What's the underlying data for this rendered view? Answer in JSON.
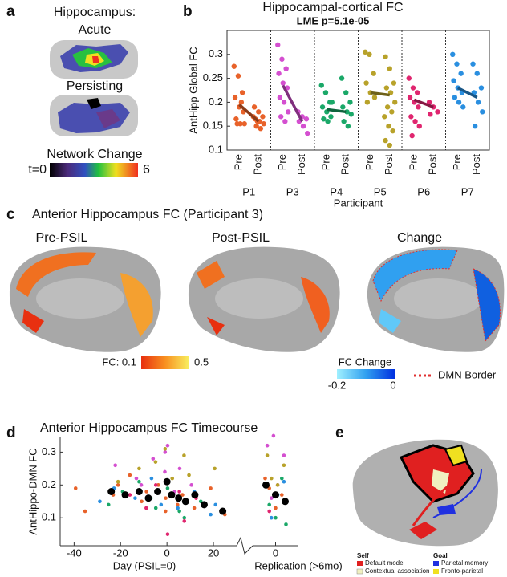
{
  "panels": {
    "a": "a",
    "b": "b",
    "c": "c",
    "d": "d",
    "e": "e"
  },
  "panel_a": {
    "title": "Hippocampus:",
    "acute": "Acute",
    "persisting": "Persisting",
    "colorbar_title": "Network Change",
    "colorbar_min": "t=0",
    "colorbar_max": "6"
  },
  "panel_c": {
    "title": "Anterior Hippocampus FC (Participant 3)",
    "pre": "Pre-PSIL",
    "post": "Post-PSIL",
    "change": "Change",
    "fc_min": "FC: 0.1",
    "fc_max": "0.5",
    "change_title": "FC Change",
    "change_min": "-0.2",
    "change_max": "0",
    "border": "DMN Border"
  },
  "panel_e": {
    "self": "Self",
    "default_mode": "Default mode",
    "contextual": "Contextual association",
    "goal": "Goal",
    "parietal": "Parietal memory",
    "fronto": "Fronto-parietal"
  },
  "chart_data": [
    {
      "type": "strip",
      "title": "Hippocampal-cortical FC",
      "subtitle": "LME p=5.1e-05",
      "ylabel": "AntHipp Global FC",
      "xlabel": "Participant",
      "categories": [
        "Pre",
        "Post"
      ],
      "ylim": [
        0.1,
        0.35
      ],
      "yticks": [
        0.1,
        0.15,
        0.2,
        0.25,
        0.3
      ],
      "series": [
        {
          "name": "P1",
          "color": "#e8622a",
          "values": [
            [
              0.275,
              0.255,
              0.22,
              0.21,
              0.19,
              0.18,
              0.165,
              0.155,
              0.155,
              0.155,
              0.2
            ],
            [
              0.19,
              0.18,
              0.17,
              0.165,
              0.16,
              0.155,
              0.15,
              0.145,
              0.17,
              0.16
            ]
          ],
          "means": [
            0.195,
            0.16
          ]
        },
        {
          "name": "P3",
          "color": "#d44fd0",
          "values": [
            [
              0.32,
              0.29,
              0.27,
              0.26,
              0.24,
              0.23,
              0.21,
              0.2,
              0.18,
              0.17,
              0.16
            ],
            [
              0.18,
              0.17,
              0.165,
              0.16,
              0.15,
              0.135
            ]
          ],
          "means": [
            0.235,
            0.16
          ]
        },
        {
          "name": "P4",
          "color": "#1aa868",
          "values": [
            [
              0.235,
              0.22,
              0.2,
              0.19,
              0.18,
              0.17,
              0.165,
              0.16,
              0.2
            ],
            [
              0.25,
              0.22,
              0.2,
              0.19,
              0.18,
              0.175,
              0.16,
              0.15
            ]
          ],
          "means": [
            0.185,
            0.18
          ]
        },
        {
          "name": "P5",
          "color": "#b8a22a",
          "values": [
            [
              0.305,
              0.3,
              0.26,
              0.24,
              0.22,
              0.21,
              0.2
            ],
            [
              0.295,
              0.27,
              0.24,
              0.23,
              0.22,
              0.2,
              0.19,
              0.18,
              0.17,
              0.15,
              0.14,
              0.12,
              0.11
            ]
          ],
          "means": [
            0.22,
            0.215
          ]
        },
        {
          "name": "P6",
          "color": "#e0266f",
          "values": [
            [
              0.25,
              0.23,
              0.22,
              0.21,
              0.2,
              0.19,
              0.17,
              0.16,
              0.15,
              0.13
            ],
            [
              0.2,
              0.19,
              0.18,
              0.175
            ]
          ],
          "means": [
            0.205,
            0.19
          ]
        },
        {
          "name": "P7",
          "color": "#2a8fe0",
          "values": [
            [
              0.3,
              0.28,
              0.26,
              0.245,
              0.23,
              0.22,
              0.21,
              0.2,
              0.19
            ],
            [
              0.28,
              0.26,
              0.23,
              0.22,
              0.2,
              0.18,
              0.15
            ]
          ],
          "means": [
            0.23,
            0.21
          ]
        }
      ]
    },
    {
      "type": "scatter",
      "title": "Anterior Hippocampus FC Timecourse",
      "ylabel": "AntHippo-DMN FC",
      "xlabel": "Day (PSIL=0)",
      "x2label": "Replication (>6mo)",
      "xlim": [
        -46,
        30
      ],
      "xticks": [
        -40,
        -20,
        0,
        20
      ],
      "x2lim": [
        -1,
        1
      ],
      "x2ticks": [
        0
      ],
      "ylim": [
        0.015,
        0.345
      ],
      "yticks": [
        0.1,
        0.2,
        0.3
      ],
      "series": [
        {
          "color": "#e8622a",
          "x": [
            -38,
            -35,
            -24,
            -20,
            -16,
            -12,
            -8,
            -4,
            -2,
            0,
            4,
            8,
            12,
            18,
            26
          ],
          "values": [
            0.19,
            0.12,
            0.17,
            0.2,
            0.23,
            0.15,
            0.18,
            0.2,
            0.12,
            0.16,
            0.14,
            0.17,
            0.13,
            0.19,
            0.11
          ],
          "rep_values": [
            0.22,
            0.17,
            0.13,
            0.19,
            0.15
          ]
        },
        {
          "color": "#d44fd0",
          "x": [
            -22,
            -14,
            -10,
            -6,
            -2,
            0,
            0,
            2,
            6,
            10
          ],
          "values": [
            0.26,
            0.22,
            0.2,
            0.28,
            0.24,
            0.3,
            0.32,
            0.18,
            0.25,
            0.2
          ],
          "rep_values": [
            0.35,
            0.32,
            0.29,
            0.2,
            0.16
          ]
        },
        {
          "color": "#1aa868",
          "x": [
            -26,
            -18,
            -12,
            -8,
            -4,
            0,
            4,
            8,
            14
          ],
          "values": [
            0.14,
            0.18,
            0.21,
            0.16,
            0.13,
            0.19,
            0.12,
            0.1,
            0.15
          ],
          "rep_values": [
            0.22,
            0.1,
            0.14,
            0.08
          ]
        },
        {
          "color": "#b8a22a",
          "x": [
            -20,
            -12,
            -6,
            0,
            2,
            6,
            10,
            20
          ],
          "values": [
            0.21,
            0.25,
            0.27,
            0.31,
            0.22,
            0.29,
            0.23,
            0.25
          ],
          "rep_values": [
            0.29,
            0.26,
            0.2,
            0.22
          ]
        },
        {
          "color": "#e0266f",
          "x": [
            -16,
            -10,
            -4,
            0,
            4,
            8,
            12
          ],
          "values": [
            0.17,
            0.13,
            0.2,
            0.05,
            0.18,
            0.09,
            0.16
          ],
          "rep_values": [
            0.17,
            0.12
          ]
        },
        {
          "color": "#2a8fe0",
          "x": [
            -30,
            -22,
            -14,
            -8,
            -2,
            2,
            6,
            12,
            18,
            22
          ],
          "values": [
            0.15,
            0.19,
            0.16,
            0.22,
            0.14,
            0.17,
            0.13,
            0.18,
            0.11,
            0.14
          ],
          "rep_values": [
            0.21,
            0.17,
            0.1
          ]
        },
        {
          "color": "#000000",
          "x": [
            -24,
            -18,
            -12,
            -8,
            -4,
            0,
            2,
            5,
            8,
            12,
            16,
            24
          ],
          "values": [
            0.18,
            0.17,
            0.18,
            0.16,
            0.18,
            0.21,
            0.17,
            0.16,
            0.15,
            0.17,
            0.14,
            0.12
          ],
          "rep_values": [
            0.2,
            0.17,
            0.15
          ]
        }
      ]
    }
  ]
}
